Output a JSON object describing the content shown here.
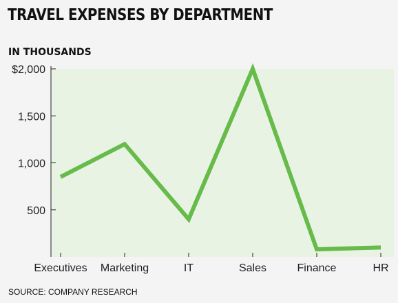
{
  "header": {
    "title": "TRAVEL EXPENSES BY DEPARTMENT",
    "subtitle": "IN THOUSANDS"
  },
  "footer": {
    "source": "SOURCE: COMPANY RESEARCH"
  },
  "colors": {
    "line": "#66bb4a",
    "plot_background": "#e9f3e3",
    "axis": "#222222"
  },
  "chart_data": {
    "type": "line",
    "title": "TRAVEL EXPENSES BY DEPARTMENT",
    "subtitle": "IN THOUSANDS",
    "categories": [
      "Executives",
      "Marketing",
      "IT",
      "Sales",
      "Finance",
      "HR"
    ],
    "series": [
      {
        "values": [
          850,
          1200,
          400,
          2000,
          80,
          100
        ]
      }
    ],
    "ylim": [
      0,
      2000
    ],
    "yticks": [
      500,
      1000,
      1500,
      2000
    ],
    "ytick_labels": [
      "500",
      "1,000",
      "1,500",
      "$2,000"
    ],
    "grid": false,
    "legend": "none"
  }
}
